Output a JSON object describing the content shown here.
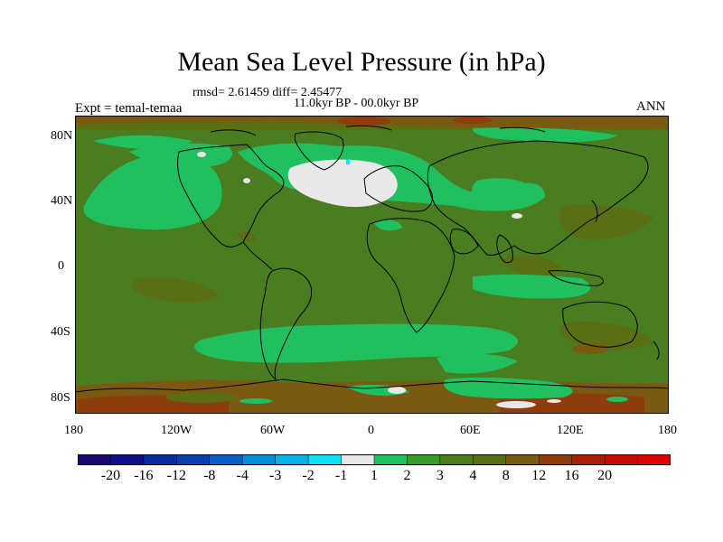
{
  "header": {
    "title": "Mean Sea Level Pressure (in hPa)",
    "stats": "rmsd= 2.61459 diff= 2.45477",
    "subtitle": "11.0kyr BP - 00.0kyr BP",
    "left_label": "Expt = temal-temaa",
    "right_label": "ANN"
  },
  "axes": {
    "y_labels": [
      "80N",
      "40N",
      "0",
      "40S",
      "80S"
    ],
    "x_labels": [
      "180",
      "120W",
      "60W",
      "0",
      "60E",
      "120E",
      "180"
    ]
  },
  "colorbar": {
    "labels": [
      "-20",
      "-16",
      "-12",
      "-8",
      "-4",
      "-3",
      "-2",
      "-1",
      "1",
      "2",
      "3",
      "4",
      "8",
      "12",
      "16",
      "20"
    ],
    "colors": [
      "#1a0a6e",
      "#0f0f8c",
      "#0a2a9c",
      "#0a3fae",
      "#0a5fc4",
      "#0a8ed8",
      "#0ab0e6",
      "#10e0f0",
      "#e8e8e8",
      "#20c060",
      "#3a9a2a",
      "#4a7d20",
      "#5a6e14",
      "#7a5a10",
      "#8e3e0c",
      "#a82006",
      "#c80c04",
      "#e00000"
    ]
  },
  "map": {
    "colors": {
      "ocean_base": "#4a7d20",
      "light_green": "#20c060",
      "dark_green": "#3a9a2a",
      "olive": "#5a6e14",
      "brown": "#7a5a10",
      "red_brown": "#8e3e0c",
      "near_zero": "#e8e8e8",
      "cyan": "#10e0f0"
    }
  }
}
